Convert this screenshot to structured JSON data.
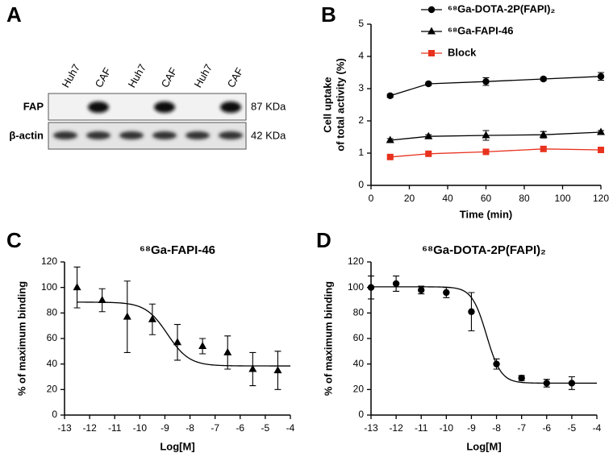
{
  "blot": {
    "label": "A",
    "lanes": [
      "Huh7",
      "CAF",
      "Huh7",
      "CAF",
      "Huh7",
      "CAF"
    ],
    "rows": [
      {
        "name": "FAP",
        "size": "87 KDa"
      },
      {
        "name": "β-actin",
        "size": "42 KDa"
      }
    ]
  },
  "chart_data": [
    {
      "type": "line",
      "label": "B",
      "x_label": "Time (min)",
      "y_label": [
        "Cell uptake",
        "of total activity (%)"
      ],
      "x": [
        10,
        30,
        60,
        90,
        120
      ],
      "series": [
        {
          "name": "⁶⁸Ga-DOTA-2P(FAPI)₂",
          "color": "#000000",
          "marker": "circle",
          "values": [
            2.78,
            3.15,
            3.22,
            3.3,
            3.38
          ],
          "errors": [
            0.05,
            0.05,
            0.12,
            0.05,
            0.12
          ]
        },
        {
          "name": "⁶⁸Ga-FAPI-46",
          "color": "#000000",
          "marker": "triangle",
          "values": [
            1.4,
            1.52,
            1.55,
            1.57,
            1.65
          ],
          "errors": [
            0.05,
            0.05,
            0.15,
            0.1,
            0.05
          ]
        },
        {
          "name": "Block",
          "color": "#e8321e",
          "marker": "square",
          "values": [
            0.88,
            0.98,
            1.04,
            1.13,
            1.1
          ],
          "errors": [
            0.05,
            0.05,
            0.05,
            0.07,
            0.05
          ]
        }
      ],
      "xlim": [
        0,
        120
      ],
      "xticks": [
        0,
        20,
        40,
        60,
        80,
        100,
        120
      ],
      "ylim": [
        0,
        5
      ],
      "yticks": [
        0,
        1,
        2,
        3,
        4,
        5
      ]
    },
    {
      "type": "scatter",
      "label": "C",
      "title": "⁶⁸Ga-FAPI-46",
      "x_label": "Log[M]",
      "y_label": "% of maximum binding",
      "x": [
        -12.5,
        -11.5,
        -10.5,
        -9.5,
        -8.5,
        -7.5,
        -6.5,
        -5.5,
        -4.5
      ],
      "series": [
        {
          "color": "#000000",
          "marker": "triangle",
          "values": [
            100,
            90,
            77,
            75,
            57,
            54,
            49,
            36,
            35
          ],
          "errors": [
            16,
            9,
            28,
            12,
            14,
            6,
            13,
            13,
            15
          ]
        }
      ],
      "fit": {
        "top": 88.5,
        "bottom": 38.5,
        "log_ec50": -8.9,
        "hill": 1
      },
      "xlim": [
        -13,
        -4
      ],
      "xticks": [
        -13,
        -12,
        -11,
        -10,
        -9,
        -8,
        -7,
        -6,
        -5,
        -4
      ],
      "ylim": [
        0,
        120
      ],
      "yticks": [
        0,
        20,
        40,
        60,
        80,
        100,
        120
      ]
    },
    {
      "type": "scatter",
      "label": "D",
      "title": "⁶⁸Ga-DOTA-2P(FAPI)₂",
      "x_label": "Log[M]",
      "y_label": "% of maximum binding",
      "x": [
        -13,
        -12,
        -11,
        -10,
        -9,
        -8,
        -7,
        -6,
        -5
      ],
      "series": [
        {
          "color": "#000000",
          "marker": "circle",
          "values": [
            100,
            103,
            98,
            96,
            81,
            40,
            29,
            25,
            25
          ],
          "errors": [
            9,
            6,
            3,
            4,
            15,
            4,
            2,
            3,
            5
          ]
        }
      ],
      "fit": {
        "top": 100.5,
        "bottom": 25,
        "log_ec50": -8.4,
        "hill": 1.5
      },
      "xlim": [
        -13,
        -4
      ],
      "xticks": [
        -13,
        -12,
        -11,
        -10,
        -9,
        -8,
        -7,
        -6,
        -5,
        -4
      ],
      "ylim": [
        0,
        120
      ],
      "yticks": [
        0,
        20,
        40,
        60,
        80,
        100,
        120
      ]
    }
  ]
}
